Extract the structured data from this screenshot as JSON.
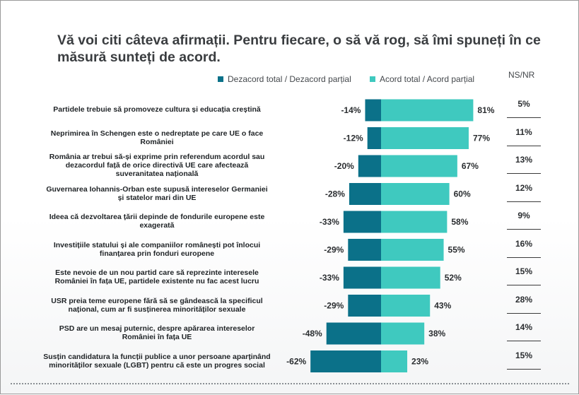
{
  "title": "Vă voi citi câteva afirmații. Pentru fiecare, o să vă rog, să îmi spuneți în ce măsură sunteți de acord.",
  "legend": {
    "negative_label": "Dezacord total / Dezacord parțial",
    "positive_label": "Acord total / Acord parțial",
    "nsnr_label": "NS/NR"
  },
  "colors": {
    "negative": "#0b7189",
    "positive": "#3fc9bf"
  },
  "chart_data": {
    "type": "bar",
    "orientation": "horizontal-diverging",
    "categories": [
      "Partidele trebuie să promoveze cultura și educația creștină",
      "Neprimirea în Schengen este o nedreptate pe care UE o face României",
      "România ar trebui să-și exprime prin referendum acordul sau dezacordul față de orice directivă UE care afectează suveranitatea națională",
      "Guvernarea Iohannis-Orban este supusă intereselor Germaniei și statelor mari din UE",
      "Ideea că dezvoltarea țării depinde de fondurile europene este exagerată",
      "Investițiile statului și ale companiilor românești pot înlocui finanțarea prin fonduri europene",
      "Este nevoie de un nou partid care să reprezinte interesele României în fața UE, partidele existente nu fac acest lucru",
      "USR preia teme europene fără să se gândească la specificul național, cum ar fi susținerea minorităților sexuale",
      "PSD are un mesaj puternic, despre apărarea intereselor României în fața UE",
      "Susțin candidatura la funcții publice a unor persoane aparținând minorităților sexuale (LGBT) pentru că este un progres social"
    ],
    "series": [
      {
        "name": "Dezacord total / Dezacord parțial",
        "values": [
          -14,
          -12,
          -20,
          -28,
          -33,
          -29,
          -33,
          -29,
          -48,
          -62
        ]
      },
      {
        "name": "Acord total / Acord parțial",
        "values": [
          81,
          77,
          67,
          60,
          58,
          55,
          52,
          43,
          38,
          23
        ]
      },
      {
        "name": "NS/NR",
        "values": [
          5,
          11,
          13,
          12,
          9,
          16,
          15,
          28,
          14,
          15
        ]
      }
    ],
    "unit": "%"
  }
}
